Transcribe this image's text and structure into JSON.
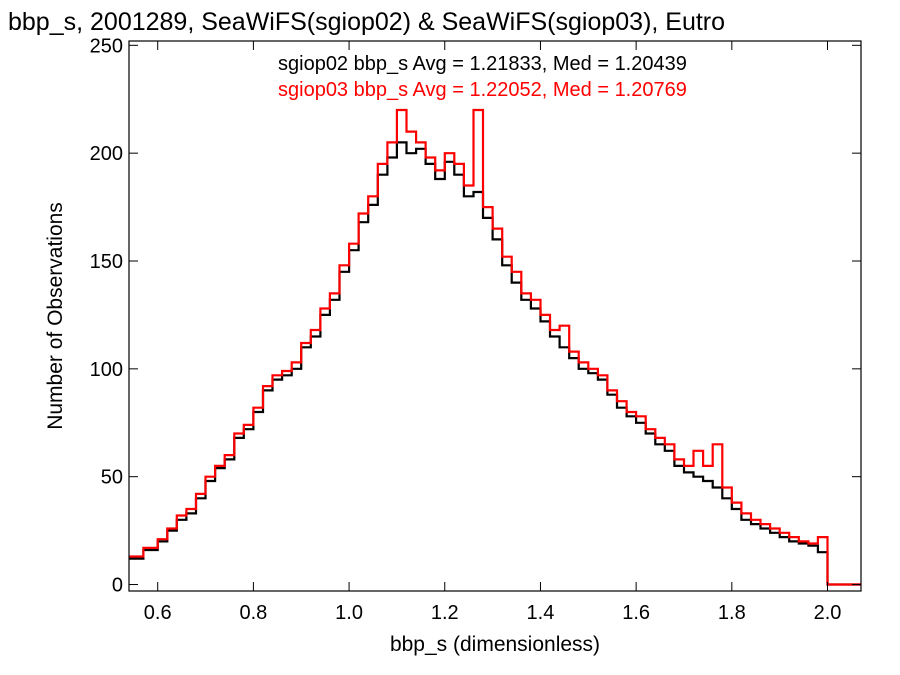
{
  "chart_data": {
    "type": "line",
    "style": "step-histogram",
    "title": "bbp_s, 2001289, SeaWiFS(sgiop02) & SeaWiFS(sgiop03), Eutro",
    "xlabel": "bbp_s (dimensionless)",
    "ylabel": "Number of Observations",
    "xlim": [
      0.54,
      2.07
    ],
    "ylim": [
      -3,
      252
    ],
    "x_ticks": [
      {
        "value": 0.6,
        "label": "0.6"
      },
      {
        "value": 0.8,
        "label": "0.8"
      },
      {
        "value": 1.0,
        "label": "1.0"
      },
      {
        "value": 1.2,
        "label": "1.2"
      },
      {
        "value": 1.4,
        "label": "1.4"
      },
      {
        "value": 1.6,
        "label": "1.6"
      },
      {
        "value": 1.8,
        "label": "1.8"
      },
      {
        "value": 2.0,
        "label": "2.0"
      }
    ],
    "y_ticks": [
      {
        "value": 0,
        "label": "0"
      },
      {
        "value": 50,
        "label": "50"
      },
      {
        "value": 100,
        "label": "100"
      },
      {
        "value": 150,
        "label": "150"
      },
      {
        "value": 200,
        "label": "200"
      },
      {
        "value": 250,
        "label": "250"
      }
    ],
    "grid": false,
    "legend_position": "top-right",
    "series": [
      {
        "name": "sgiop02 bbp_s Avg = 1.21833, Med = 1.20439",
        "color": "#000000",
        "x": [
          0.54,
          0.57,
          0.6,
          0.62,
          0.64,
          0.66,
          0.68,
          0.7,
          0.72,
          0.74,
          0.76,
          0.78,
          0.8,
          0.82,
          0.84,
          0.86,
          0.88,
          0.9,
          0.92,
          0.94,
          0.96,
          0.98,
          1.0,
          1.02,
          1.04,
          1.06,
          1.08,
          1.1,
          1.12,
          1.14,
          1.16,
          1.18,
          1.2,
          1.22,
          1.24,
          1.26,
          1.28,
          1.3,
          1.32,
          1.34,
          1.36,
          1.38,
          1.4,
          1.42,
          1.44,
          1.46,
          1.48,
          1.5,
          1.52,
          1.54,
          1.56,
          1.58,
          1.6,
          1.62,
          1.64,
          1.66,
          1.68,
          1.7,
          1.72,
          1.74,
          1.76,
          1.78,
          1.8,
          1.82,
          1.84,
          1.86,
          1.88,
          1.9,
          1.92,
          1.94,
          1.96,
          1.98,
          2.0,
          2.03,
          2.07
        ],
        "y": [
          12,
          16,
          20,
          25,
          30,
          33,
          40,
          48,
          54,
          58,
          68,
          72,
          80,
          90,
          95,
          97,
          100,
          110,
          115,
          125,
          132,
          145,
          155,
          168,
          176,
          190,
          198,
          205,
          200,
          202,
          195,
          188,
          196,
          190,
          180,
          182,
          170,
          160,
          148,
          140,
          132,
          128,
          122,
          115,
          110,
          105,
          100,
          98,
          95,
          88,
          82,
          78,
          75,
          70,
          65,
          62,
          55,
          52,
          50,
          48,
          45,
          40,
          35,
          30,
          28,
          26,
          24,
          22,
          20,
          19,
          18,
          15,
          0,
          0,
          0
        ]
      },
      {
        "name": "sgiop03 bbp_s Avg = 1.22052, Med = 1.20769",
        "color": "#ff0000",
        "x": [
          0.54,
          0.57,
          0.6,
          0.62,
          0.64,
          0.66,
          0.68,
          0.7,
          0.72,
          0.74,
          0.76,
          0.78,
          0.8,
          0.82,
          0.84,
          0.86,
          0.88,
          0.9,
          0.92,
          0.94,
          0.96,
          0.98,
          1.0,
          1.02,
          1.04,
          1.06,
          1.08,
          1.1,
          1.12,
          1.14,
          1.16,
          1.18,
          1.2,
          1.22,
          1.24,
          1.26,
          1.28,
          1.3,
          1.32,
          1.34,
          1.36,
          1.38,
          1.4,
          1.42,
          1.44,
          1.46,
          1.48,
          1.5,
          1.52,
          1.54,
          1.56,
          1.58,
          1.6,
          1.62,
          1.64,
          1.66,
          1.68,
          1.7,
          1.72,
          1.74,
          1.76,
          1.78,
          1.8,
          1.82,
          1.84,
          1.86,
          1.88,
          1.9,
          1.92,
          1.94,
          1.96,
          1.98,
          2.0,
          2.03,
          2.07
        ],
        "y": [
          13,
          17,
          21,
          26,
          32,
          35,
          42,
          50,
          55,
          60,
          70,
          74,
          82,
          92,
          97,
          99,
          103,
          112,
          118,
          128,
          135,
          148,
          158,
          172,
          180,
          195,
          205,
          220,
          210,
          205,
          198,
          192,
          200,
          195,
          185,
          220,
          175,
          165,
          152,
          145,
          135,
          132,
          125,
          118,
          120,
          108,
          103,
          100,
          97,
          90,
          85,
          80,
          78,
          72,
          68,
          65,
          58,
          55,
          62,
          55,
          65,
          45,
          38,
          33,
          30,
          28,
          26,
          24,
          22,
          20,
          19,
          22,
          0,
          0,
          0
        ]
      }
    ]
  }
}
